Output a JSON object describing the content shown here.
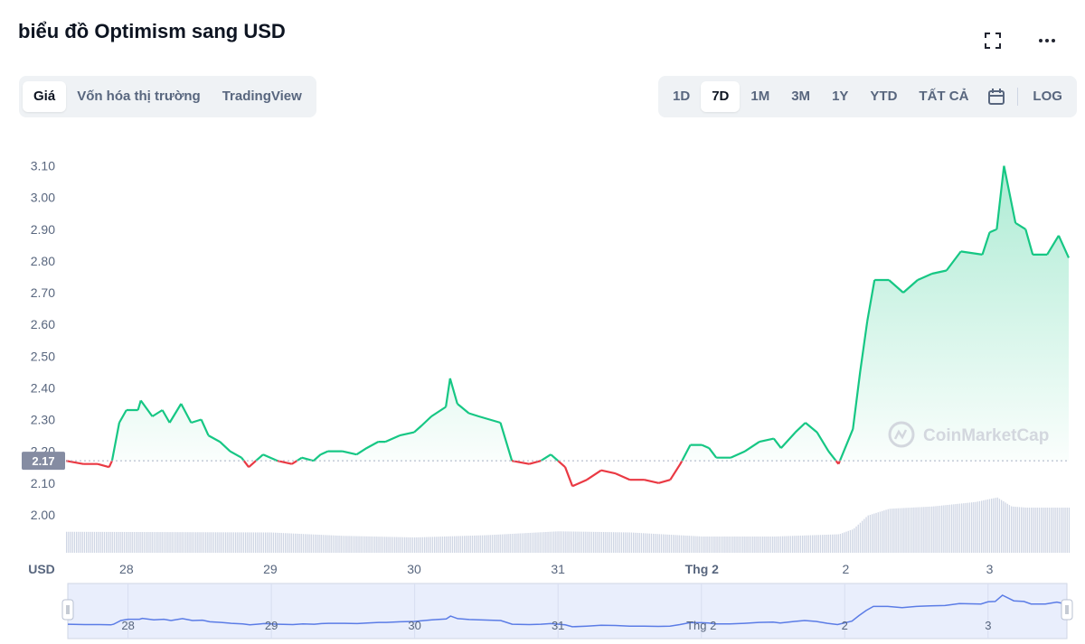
{
  "header": {
    "title": "biểu đồ Optimism sang USD",
    "fullscreen_icon": "fullscreen-icon",
    "more_icon": "more-horizontal-icon"
  },
  "view_tabs": [
    {
      "label": "Giá",
      "active": true
    },
    {
      "label": "Vốn hóa thị trường",
      "active": false
    },
    {
      "label": "TradingView",
      "active": false
    }
  ],
  "range_tabs": [
    {
      "label": "1D",
      "active": false
    },
    {
      "label": "7D",
      "active": true
    },
    {
      "label": "1M",
      "active": false
    },
    {
      "label": "3M",
      "active": false
    },
    {
      "label": "1Y",
      "active": false
    },
    {
      "label": "YTD",
      "active": false
    },
    {
      "label": "TẤT CẢ",
      "active": false
    }
  ],
  "calendar_icon": "calendar-icon",
  "log_label": "LOG",
  "colors": {
    "up": "#16c784",
    "down": "#ea3943",
    "volume": "#cfd6e4",
    "navigator": "#5b7ce6",
    "navigator_fill": "#e9eefc"
  },
  "chart_data": {
    "type": "line",
    "currency_label": "USD",
    "watermark": "CoinMarketCap",
    "baseline_value": 2.17,
    "baseline_label": "2.17",
    "ylim": [
      1.9,
      3.15
    ],
    "y_ticks": [
      {
        "v": 2.0,
        "label": "2.00"
      },
      {
        "v": 2.1,
        "label": "2.10"
      },
      {
        "v": 2.2,
        "label": "2.20"
      },
      {
        "v": 2.3,
        "label": "2.30"
      },
      {
        "v": 2.4,
        "label": "2.40"
      },
      {
        "v": 2.5,
        "label": "2.50"
      },
      {
        "v": 2.6,
        "label": "2.60"
      },
      {
        "v": 2.7,
        "label": "2.70"
      },
      {
        "v": 2.8,
        "label": "2.80"
      },
      {
        "v": 2.9,
        "label": "2.90"
      },
      {
        "v": 3.0,
        "label": "3.00"
      },
      {
        "v": 3.1,
        "label": "3.10"
      }
    ],
    "xlim": [
      -0.42,
      6.55
    ],
    "x_ticks": [
      {
        "t": 0,
        "label": "28"
      },
      {
        "t": 1,
        "label": "29"
      },
      {
        "t": 2,
        "label": "30"
      },
      {
        "t": 3,
        "label": "31"
      },
      {
        "t": 4,
        "label": "Thg 2"
      },
      {
        "t": 5,
        "label": "2"
      },
      {
        "t": 6,
        "label": "3"
      }
    ],
    "series": [
      {
        "points": [
          [
            -0.42,
            2.17
          ],
          [
            -0.3,
            2.16
          ],
          [
            -0.2,
            2.16
          ],
          [
            -0.12,
            2.15
          ],
          [
            -0.1,
            2.17
          ],
          [
            -0.05,
            2.29
          ],
          [
            0.0,
            2.33
          ],
          [
            0.08,
            2.33
          ],
          [
            0.1,
            2.36
          ],
          [
            0.18,
            2.31
          ],
          [
            0.25,
            2.33
          ],
          [
            0.3,
            2.29
          ],
          [
            0.38,
            2.35
          ],
          [
            0.45,
            2.29
          ],
          [
            0.52,
            2.3
          ],
          [
            0.57,
            2.25
          ],
          [
            0.65,
            2.23
          ],
          [
            0.72,
            2.2
          ],
          [
            0.8,
            2.18
          ],
          [
            0.85,
            2.15
          ],
          [
            0.9,
            2.17
          ],
          [
            0.95,
            2.19
          ],
          [
            1.05,
            2.17
          ],
          [
            1.15,
            2.16
          ],
          [
            1.22,
            2.18
          ],
          [
            1.3,
            2.17
          ],
          [
            1.35,
            2.19
          ],
          [
            1.4,
            2.2
          ],
          [
            1.5,
            2.2
          ],
          [
            1.6,
            2.19
          ],
          [
            1.67,
            2.21
          ],
          [
            1.75,
            2.23
          ],
          [
            1.8,
            2.23
          ],
          [
            1.9,
            2.25
          ],
          [
            2.0,
            2.26
          ],
          [
            2.05,
            2.28
          ],
          [
            2.12,
            2.31
          ],
          [
            2.22,
            2.34
          ],
          [
            2.25,
            2.43
          ],
          [
            2.3,
            2.35
          ],
          [
            2.38,
            2.32
          ],
          [
            2.45,
            2.31
          ],
          [
            2.6,
            2.29
          ],
          [
            2.68,
            2.17
          ],
          [
            2.8,
            2.16
          ],
          [
            2.88,
            2.17
          ],
          [
            2.95,
            2.19
          ],
          [
            3.05,
            2.15
          ],
          [
            3.1,
            2.09
          ],
          [
            3.2,
            2.11
          ],
          [
            3.3,
            2.14
          ],
          [
            3.4,
            2.13
          ],
          [
            3.5,
            2.11
          ],
          [
            3.6,
            2.11
          ],
          [
            3.7,
            2.1
          ],
          [
            3.78,
            2.11
          ],
          [
            3.85,
            2.16
          ],
          [
            3.92,
            2.22
          ],
          [
            4.0,
            2.22
          ],
          [
            4.05,
            2.21
          ],
          [
            4.1,
            2.18
          ],
          [
            4.2,
            2.18
          ],
          [
            4.3,
            2.2
          ],
          [
            4.4,
            2.23
          ],
          [
            4.5,
            2.24
          ],
          [
            4.55,
            2.21
          ],
          [
            4.65,
            2.26
          ],
          [
            4.72,
            2.29
          ],
          [
            4.8,
            2.26
          ],
          [
            4.88,
            2.2
          ],
          [
            4.95,
            2.16
          ],
          [
            5.05,
            2.27
          ],
          [
            5.1,
            2.45
          ],
          [
            5.15,
            2.61
          ],
          [
            5.2,
            2.74
          ],
          [
            5.3,
            2.74
          ],
          [
            5.4,
            2.7
          ],
          [
            5.5,
            2.74
          ],
          [
            5.6,
            2.76
          ],
          [
            5.7,
            2.77
          ],
          [
            5.8,
            2.83
          ],
          [
            5.95,
            2.82
          ],
          [
            6.0,
            2.89
          ],
          [
            6.05,
            2.9
          ],
          [
            6.1,
            3.1
          ],
          [
            6.18,
            2.92
          ],
          [
            6.25,
            2.9
          ],
          [
            6.3,
            2.82
          ],
          [
            6.4,
            2.82
          ],
          [
            6.48,
            2.88
          ],
          [
            6.55,
            2.81
          ]
        ]
      }
    ],
    "volume": {
      "x_bands": [
        [
          -0.42,
          0.93
        ],
        [
          1.0,
          0.9
        ],
        [
          1.5,
          0.75
        ],
        [
          2.0,
          0.68
        ],
        [
          2.5,
          0.78
        ],
        [
          3.0,
          0.95
        ],
        [
          3.5,
          0.9
        ],
        [
          4.0,
          0.72
        ],
        [
          4.5,
          0.72
        ],
        [
          4.95,
          0.82
        ],
        [
          5.05,
          1.05
        ],
        [
          5.15,
          1.65
        ],
        [
          5.3,
          1.95
        ],
        [
          5.6,
          2.05
        ],
        [
          5.9,
          2.25
        ],
        [
          6.05,
          2.45
        ],
        [
          6.15,
          2.05
        ],
        [
          6.25,
          2.0
        ],
        [
          6.55,
          2.0
        ]
      ]
    },
    "navigator": {
      "labels": [
        "28",
        "29",
        "30",
        "31",
        "Thg 2",
        "2",
        "3"
      ]
    }
  }
}
